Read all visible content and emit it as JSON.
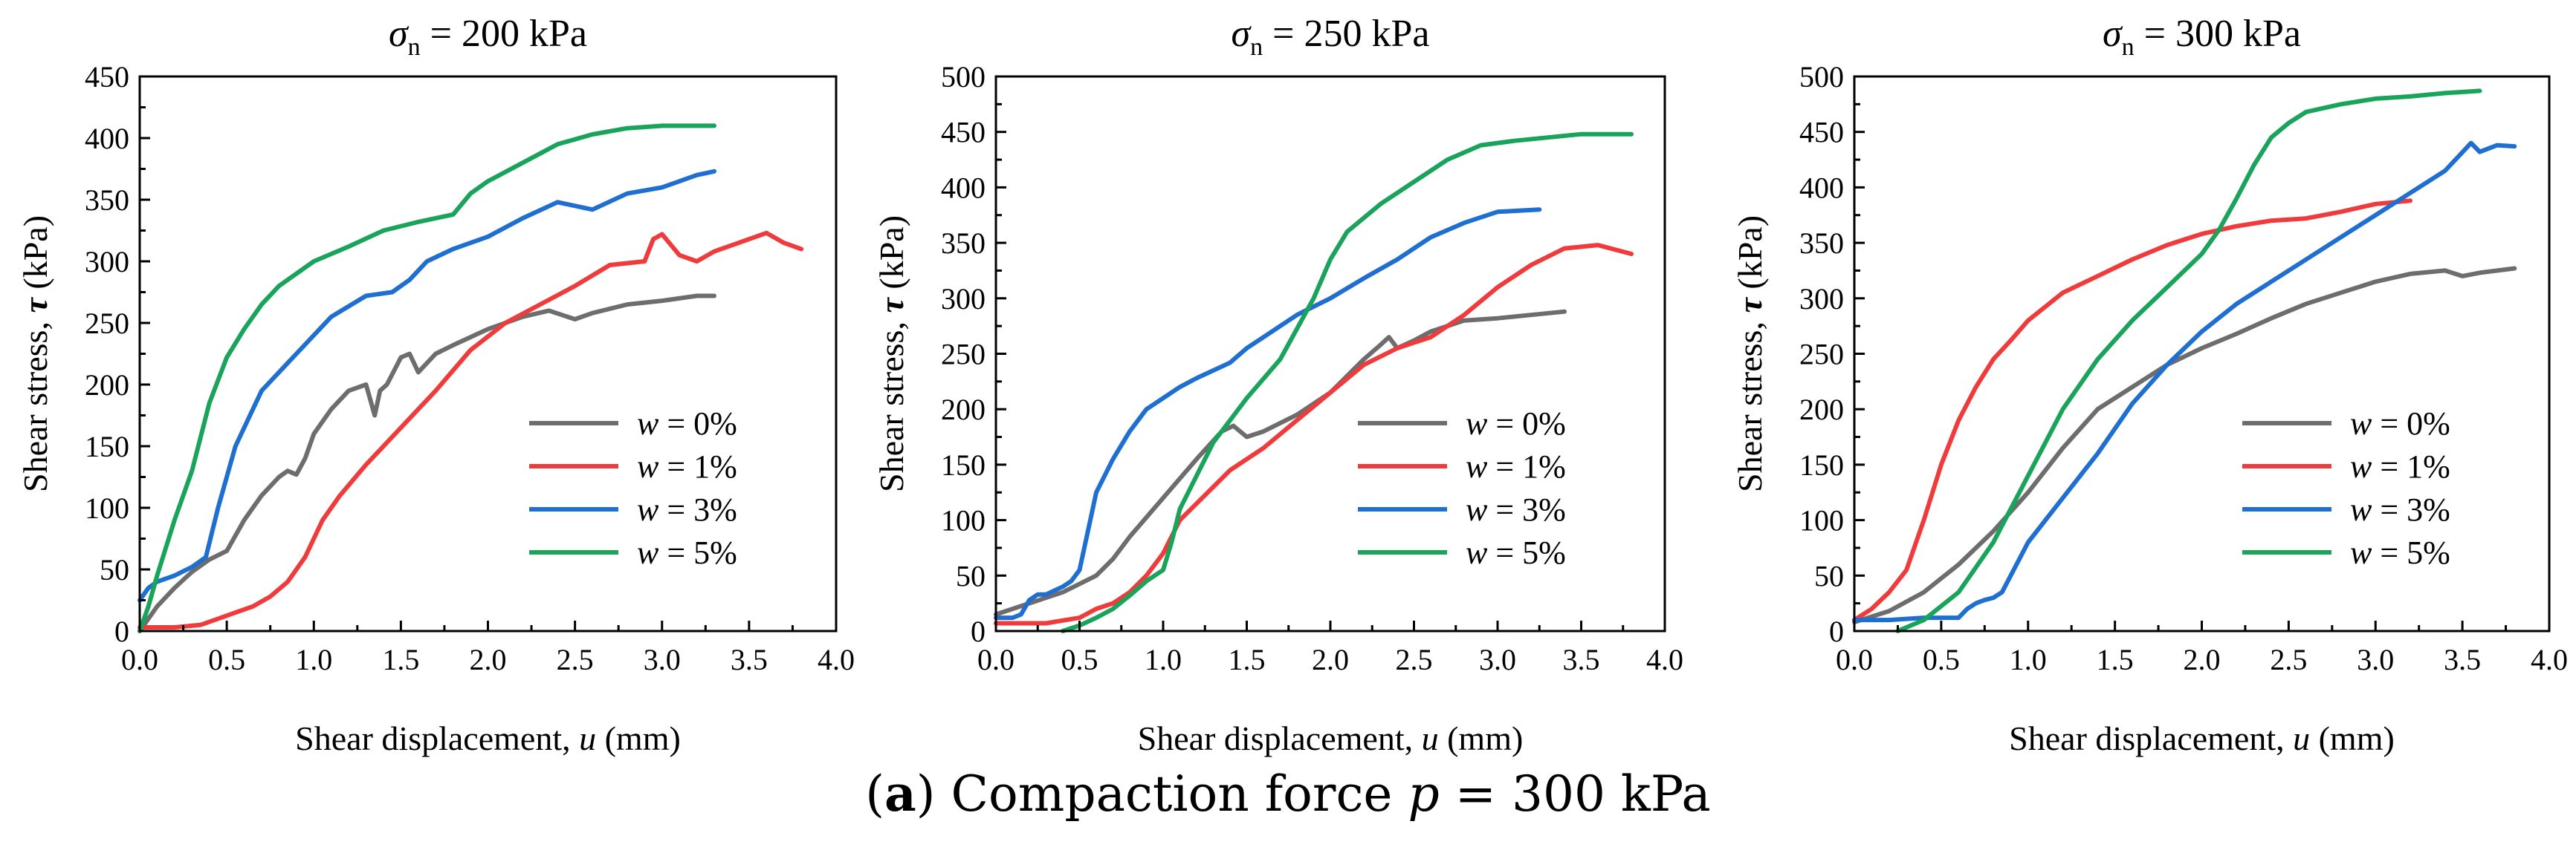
{
  "caption": {
    "label": "a",
    "text": "Compaction force",
    "symbol": "p",
    "value": "= 300 kPa"
  },
  "chart_data": [
    {
      "type": "line",
      "title": "σn = 200 kPa",
      "title_symbol": "σ",
      "title_subscript": "n",
      "title_value": "= 200 kPa",
      "xlabel": "Shear displacement, u (mm)",
      "ylabel": "Shear stress, τ (kPa)",
      "xlim": [
        0,
        4.0
      ],
      "ylim": [
        0,
        450
      ],
      "x_ticks": [
        "0.0",
        "0.5",
        "1.0",
        "1.5",
        "2.0",
        "2.5",
        "3.0",
        "3.5",
        "4.0"
      ],
      "y_ticks": [
        "0",
        "50",
        "100",
        "150",
        "200",
        "250",
        "300",
        "350",
        "400",
        "450"
      ],
      "legend_position": "lower-right",
      "series": [
        {
          "name": "w = 0%",
          "color": "#6d6d6d",
          "x": [
            0,
            0.1,
            0.2,
            0.3,
            0.4,
            0.5,
            0.6,
            0.7,
            0.8,
            0.85,
            0.9,
            0.95,
            1.0,
            1.1,
            1.2,
            1.3,
            1.35,
            1.38,
            1.42,
            1.5,
            1.55,
            1.6,
            1.7,
            1.8,
            2.0,
            2.2,
            2.35,
            2.5,
            2.6,
            2.8,
            3.0,
            3.2,
            3.3
          ],
          "y": [
            0,
            20,
            35,
            48,
            58,
            65,
            90,
            110,
            125,
            130,
            127,
            140,
            160,
            180,
            195,
            200,
            175,
            195,
            200,
            222,
            225,
            210,
            225,
            232,
            245,
            255,
            260,
            253,
            258,
            265,
            268,
            272,
            272
          ]
        },
        {
          "name": "w = 1%",
          "color": "#ef3b3b",
          "x": [
            0,
            0.2,
            0.35,
            0.45,
            0.55,
            0.65,
            0.75,
            0.85,
            0.95,
            1.05,
            1.15,
            1.3,
            1.5,
            1.7,
            1.9,
            2.1,
            2.3,
            2.5,
            2.7,
            2.9,
            2.95,
            3.0,
            3.1,
            3.2,
            3.3,
            3.5,
            3.6,
            3.7,
            3.8
          ],
          "y": [
            3,
            3,
            5,
            10,
            15,
            20,
            28,
            40,
            60,
            90,
            110,
            135,
            165,
            195,
            228,
            250,
            265,
            280,
            297,
            300,
            318,
            322,
            305,
            300,
            308,
            318,
            323,
            315,
            310
          ]
        },
        {
          "name": "w = 3%",
          "color": "#1f6fd1",
          "x": [
            0,
            0.05,
            0.1,
            0.2,
            0.3,
            0.38,
            0.45,
            0.55,
            0.7,
            0.9,
            1.1,
            1.3,
            1.45,
            1.55,
            1.65,
            1.8,
            2.0,
            2.2,
            2.4,
            2.6,
            2.8,
            3.0,
            3.2,
            3.3
          ],
          "y": [
            25,
            35,
            40,
            45,
            52,
            60,
            100,
            150,
            195,
            225,
            255,
            272,
            275,
            285,
            300,
            310,
            320,
            335,
            348,
            342,
            355,
            360,
            370,
            373
          ]
        },
        {
          "name": "w = 5%",
          "color": "#1aa35a",
          "x": [
            0,
            0.05,
            0.1,
            0.2,
            0.3,
            0.4,
            0.5,
            0.6,
            0.7,
            0.8,
            1.0,
            1.2,
            1.4,
            1.6,
            1.8,
            1.9,
            2.0,
            2.2,
            2.4,
            2.6,
            2.8,
            3.0,
            3.2,
            3.3
          ],
          "y": [
            0,
            20,
            45,
            90,
            130,
            185,
            222,
            245,
            265,
            280,
            300,
            312,
            325,
            332,
            338,
            355,
            365,
            380,
            395,
            403,
            408,
            410,
            410,
            410
          ]
        }
      ]
    },
    {
      "type": "line",
      "title": "σn = 250 kPa",
      "title_symbol": "σ",
      "title_subscript": "n",
      "title_value": "= 250 kPa",
      "xlabel": "Shear displacement, u (mm)",
      "ylabel": "Shear stress, τ (kPa)",
      "xlim": [
        0,
        4.0
      ],
      "ylim": [
        0,
        500
      ],
      "x_ticks": [
        "0.0",
        "0.5",
        "1.0",
        "1.5",
        "2.0",
        "2.5",
        "3.0",
        "3.5",
        "4.0"
      ],
      "y_ticks": [
        "0",
        "50",
        "100",
        "150",
        "200",
        "250",
        "300",
        "350",
        "400",
        "450",
        "500"
      ],
      "legend_position": "lower-right",
      "series": [
        {
          "name": "w = 0%",
          "color": "#6d6d6d",
          "x": [
            0,
            0.2,
            0.4,
            0.6,
            0.7,
            0.8,
            1.0,
            1.2,
            1.35,
            1.42,
            1.5,
            1.6,
            1.8,
            2.0,
            2.1,
            2.2,
            2.3,
            2.35,
            2.4,
            2.5,
            2.6,
            2.8,
            3.0,
            3.2,
            3.4
          ],
          "y": [
            15,
            25,
            35,
            50,
            65,
            85,
            120,
            155,
            180,
            185,
            175,
            180,
            195,
            215,
            230,
            245,
            258,
            265,
            255,
            262,
            270,
            280,
            282,
            285,
            288
          ]
        },
        {
          "name": "w = 1%",
          "color": "#ef3b3b",
          "x": [
            0,
            0.3,
            0.5,
            0.6,
            0.7,
            0.8,
            0.9,
            1.0,
            1.1,
            1.2,
            1.4,
            1.6,
            1.8,
            2.0,
            2.2,
            2.4,
            2.6,
            2.8,
            3.0,
            3.2,
            3.4,
            3.6,
            3.8
          ],
          "y": [
            7,
            7,
            12,
            20,
            25,
            35,
            50,
            70,
            100,
            115,
            145,
            165,
            190,
            215,
            240,
            255,
            265,
            285,
            310,
            330,
            345,
            348,
            340
          ]
        },
        {
          "name": "w = 3%",
          "color": "#1f6fd1",
          "x": [
            0,
            0.1,
            0.15,
            0.2,
            0.25,
            0.3,
            0.4,
            0.45,
            0.5,
            0.55,
            0.6,
            0.7,
            0.8,
            0.9,
            1.0,
            1.1,
            1.2,
            1.4,
            1.5,
            1.6,
            1.8,
            2.0,
            2.2,
            2.4,
            2.6,
            2.8,
            3.0,
            3.25
          ],
          "y": [
            12,
            12,
            15,
            28,
            33,
            33,
            40,
            45,
            55,
            90,
            125,
            155,
            180,
            200,
            210,
            220,
            228,
            242,
            255,
            265,
            285,
            300,
            318,
            335,
            355,
            368,
            378,
            380
          ]
        },
        {
          "name": "w = 5%",
          "color": "#1aa35a",
          "x": [
            0.4,
            0.5,
            0.6,
            0.7,
            0.8,
            0.9,
            1.0,
            1.05,
            1.1,
            1.2,
            1.3,
            1.5,
            1.7,
            1.9,
            2.0,
            2.1,
            2.3,
            2.5,
            2.7,
            2.9,
            3.1,
            3.3,
            3.5,
            3.8
          ],
          "y": [
            0,
            5,
            12,
            20,
            32,
            45,
            55,
            80,
            110,
            140,
            170,
            210,
            245,
            300,
            335,
            360,
            385,
            405,
            425,
            438,
            442,
            445,
            448,
            448
          ]
        }
      ]
    },
    {
      "type": "line",
      "title": "σn = 300 kPa",
      "title_symbol": "σ",
      "title_subscript": "n",
      "title_value": "= 300 kPa",
      "xlabel": "Shear displacement, u (mm)",
      "ylabel": "Shear stress, τ (kPa)",
      "xlim": [
        0,
        4.0
      ],
      "ylim": [
        0,
        500
      ],
      "x_ticks": [
        "0.0",
        "0.5",
        "1.0",
        "1.5",
        "2.0",
        "2.5",
        "3.0",
        "3.5",
        "4.0"
      ],
      "y_ticks": [
        "0",
        "50",
        "100",
        "150",
        "200",
        "250",
        "300",
        "350",
        "400",
        "450",
        "500"
      ],
      "legend_position": "lower-right",
      "series": [
        {
          "name": "w = 0%",
          "color": "#6d6d6d",
          "x": [
            0,
            0.2,
            0.4,
            0.6,
            0.8,
            1.0,
            1.2,
            1.4,
            1.6,
            1.8,
            2.0,
            2.2,
            2.4,
            2.6,
            2.8,
            3.0,
            3.2,
            3.4,
            3.5,
            3.6,
            3.8
          ],
          "y": [
            8,
            18,
            35,
            60,
            90,
            125,
            165,
            200,
            220,
            240,
            255,
            268,
            282,
            295,
            305,
            315,
            322,
            325,
            320,
            323,
            327
          ]
        },
        {
          "name": "w = 1%",
          "color": "#ef3b3b",
          "x": [
            0,
            0.1,
            0.2,
            0.3,
            0.4,
            0.5,
            0.6,
            0.7,
            0.8,
            0.9,
            1.0,
            1.2,
            1.4,
            1.6,
            1.8,
            2.0,
            2.2,
            2.4,
            2.6,
            2.8,
            3.0,
            3.2
          ],
          "y": [
            10,
            20,
            35,
            55,
            100,
            150,
            190,
            220,
            245,
            262,
            280,
            305,
            320,
            335,
            348,
            358,
            365,
            370,
            372,
            378,
            385,
            388
          ]
        },
        {
          "name": "w = 3%",
          "color": "#1f6fd1",
          "x": [
            0,
            0.2,
            0.4,
            0.6,
            0.65,
            0.7,
            0.75,
            0.8,
            0.85,
            0.9,
            1.0,
            1.1,
            1.2,
            1.4,
            1.6,
            1.8,
            2.0,
            2.2,
            2.4,
            2.6,
            2.8,
            3.0,
            3.2,
            3.4,
            3.55,
            3.6,
            3.7,
            3.8
          ],
          "y": [
            10,
            10,
            12,
            12,
            20,
            25,
            28,
            30,
            35,
            50,
            80,
            100,
            120,
            160,
            205,
            240,
            270,
            295,
            315,
            335,
            355,
            375,
            395,
            415,
            440,
            432,
            438,
            437
          ]
        },
        {
          "name": "w = 5%",
          "color": "#1aa35a",
          "x": [
            0.25,
            0.4,
            0.6,
            0.8,
            1.0,
            1.2,
            1.4,
            1.6,
            1.8,
            2.0,
            2.1,
            2.2,
            2.3,
            2.4,
            2.5,
            2.6,
            2.8,
            3.0,
            3.2,
            3.4,
            3.6
          ],
          "y": [
            0,
            10,
            35,
            80,
            140,
            200,
            245,
            280,
            310,
            340,
            362,
            390,
            420,
            445,
            458,
            468,
            475,
            480,
            482,
            485,
            487
          ]
        }
      ]
    }
  ]
}
